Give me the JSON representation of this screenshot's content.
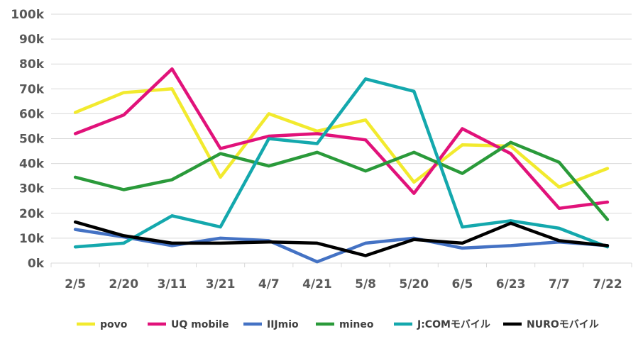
{
  "chart_data": {
    "type": "line",
    "categories": [
      "2/5",
      "2/20",
      "3/11",
      "3/21",
      "4/7",
      "4/21",
      "5/8",
      "5/20",
      "6/5",
      "6/23",
      "7/7",
      "7/22"
    ],
    "yticks": [
      "0k",
      "10k",
      "20k",
      "30k",
      "40k",
      "50k",
      "60k",
      "70k",
      "80k",
      "90k",
      "100k"
    ],
    "ylim": [
      0,
      100000
    ],
    "grid": true,
    "legend_position": "bottom",
    "series": [
      {
        "name": "povo",
        "color": "#f2ea2e",
        "values": [
          60500,
          68500,
          70000,
          34500,
          60000,
          53000,
          57500,
          32500,
          47500,
          47000,
          30500,
          38000
        ]
      },
      {
        "name": "UQ mobile",
        "color": "#e1127a",
        "values": [
          52000,
          59500,
          78000,
          46000,
          51000,
          52000,
          49500,
          28000,
          54000,
          44000,
          22000,
          24500
        ]
      },
      {
        "name": "IIJmio",
        "color": "#4472c4",
        "values": [
          13500,
          10500,
          7000,
          10000,
          9000,
          500,
          8000,
          10000,
          6000,
          7000,
          8500,
          7000
        ]
      },
      {
        "name": "mineo",
        "color": "#2a9a3a",
        "values": [
          34500,
          29500,
          33500,
          44000,
          39000,
          44500,
          37000,
          44500,
          36000,
          48500,
          40500,
          17500
        ]
      },
      {
        "name": "J:COMモバイル",
        "color": "#14a8ad",
        "values": [
          6500,
          8000,
          19000,
          14500,
          50000,
          48000,
          74000,
          69000,
          14500,
          17000,
          14000,
          6500
        ]
      },
      {
        "name": "NUROモバイル",
        "color": "#000000",
        "values": [
          16500,
          11000,
          8000,
          8000,
          8500,
          8000,
          3000,
          9500,
          8000,
          16000,
          9000,
          7000
        ]
      }
    ]
  }
}
